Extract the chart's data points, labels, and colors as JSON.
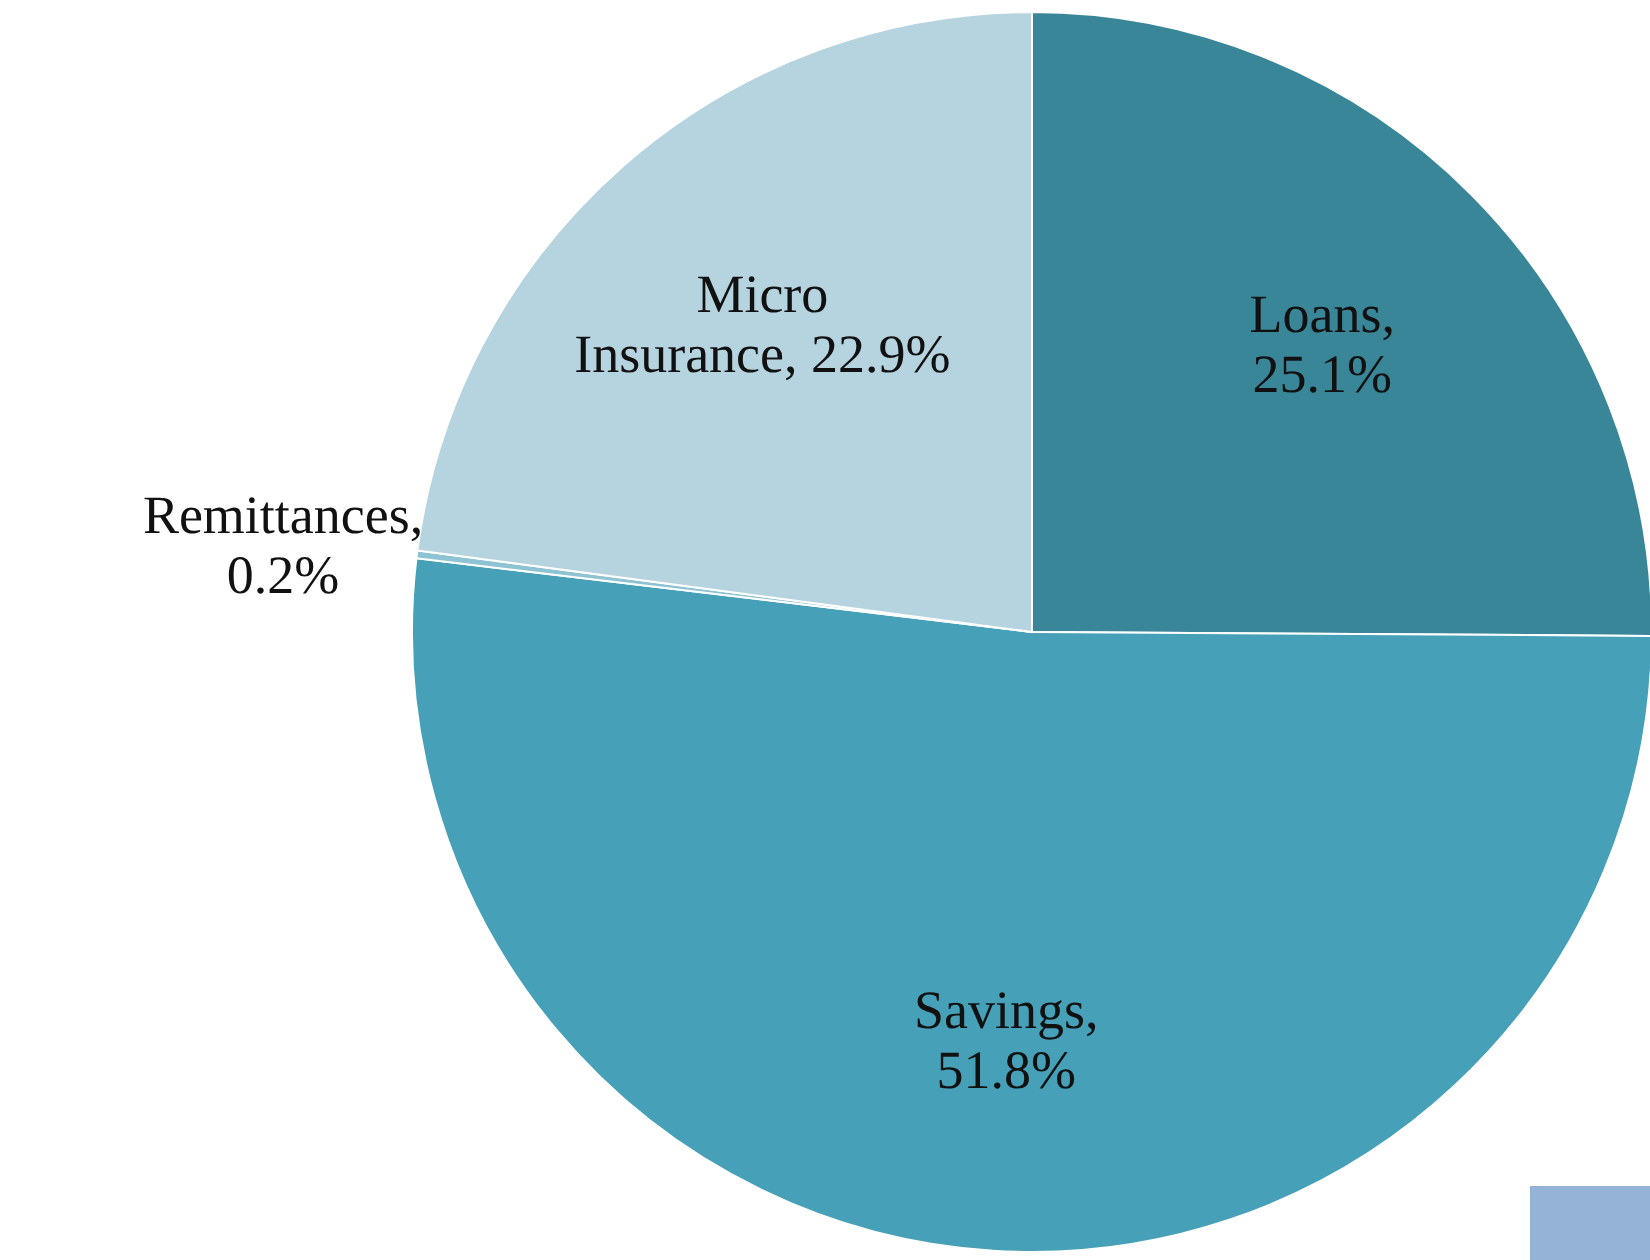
{
  "chart_data": {
    "type": "pie",
    "categories": [
      "Loans",
      "Savings",
      "Remittances",
      "Micro Insurance"
    ],
    "values": [
      25.1,
      51.8,
      0.2,
      22.9
    ],
    "value_labels": [
      ", 25.1%",
      ", 51.8%",
      ", 0.2%",
      ", 22.9%"
    ],
    "colors": [
      "#3a8699",
      "#46a0b8",
      "#8ec3d3",
      "#b5d4df"
    ]
  }
}
